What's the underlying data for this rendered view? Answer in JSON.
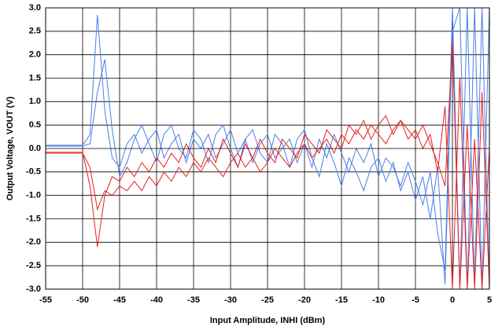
{
  "chart_data": {
    "type": "line",
    "x_label": "Input Amplitude, INHI (dBm)",
    "y_label": "Output Voltage, VOUT (V)",
    "x": [
      -55,
      -54,
      -53,
      -52,
      -51,
      -50,
      -49,
      -48,
      -47,
      -46,
      -45,
      -44,
      -43,
      -42,
      -41,
      -40,
      -39,
      -38,
      -37,
      -36,
      -35,
      -34,
      -33,
      -32,
      -31,
      -30,
      -29,
      -28,
      -27,
      -26,
      -25,
      -24,
      -23,
      -22,
      -21,
      -20,
      -19,
      -18,
      -17,
      -16,
      -15,
      -14,
      -13,
      -12,
      -11,
      -10,
      -9,
      -8,
      -7,
      -6,
      -5,
      -4,
      -3,
      -2,
      -1,
      0,
      1,
      2,
      3,
      4,
      5
    ],
    "series": [
      {
        "color": "#4a7fe8",
        "values": [
          0.07,
          0.07,
          0.07,
          0.07,
          0.07,
          0.07,
          0.3,
          2.85,
          0.8,
          -0.2,
          -0.4,
          0.1,
          0.3,
          -0.1,
          0.2,
          0.4,
          -0.2,
          0.1,
          0.3,
          -0.3,
          0.2,
          0.0,
          0.3,
          -0.2,
          0.1,
          0.4,
          -0.1,
          0.2,
          -0.3,
          0.1,
          0.3,
          -0.2,
          0.0,
          0.2,
          -0.3,
          0.1,
          -0.4,
          0.2,
          -0.2,
          0.3,
          -0.1,
          -0.5,
          0.0,
          -0.3,
          0.1,
          -0.6,
          -0.2,
          -0.4,
          -0.8,
          -0.3,
          -0.7,
          -1.2,
          -0.5,
          -1.8,
          -2.6,
          3.0,
          -3.0,
          3.0,
          -2.9,
          3.0,
          -3.0
        ]
      },
      {
        "color": "#4a7fe8",
        "values": [
          0.05,
          0.05,
          0.05,
          0.05,
          0.05,
          0.05,
          0.1,
          1.2,
          1.9,
          0.4,
          -0.6,
          -0.3,
          0.2,
          0.5,
          0.1,
          -0.3,
          0.3,
          0.5,
          0.0,
          -0.2,
          0.4,
          0.2,
          -0.3,
          0.3,
          0.5,
          0.0,
          -0.4,
          0.2,
          0.4,
          -0.1,
          -0.3,
          0.3,
          0.1,
          -0.4,
          0.2,
          0.4,
          -0.2,
          -0.6,
          0.1,
          -0.3,
          -0.8,
          -0.2,
          -0.5,
          -0.9,
          -0.4,
          -0.2,
          -0.7,
          -0.3,
          -0.9,
          -0.5,
          -1.1,
          -0.6,
          -1.5,
          -0.4,
          -2.9,
          2.5,
          3.0,
          -3.0,
          3.0,
          -3.0,
          3.0
        ]
      },
      {
        "color": "#e82020",
        "values": [
          -0.08,
          -0.08,
          -0.08,
          -0.08,
          -0.08,
          -0.08,
          -0.8,
          -2.1,
          -1.0,
          -0.6,
          -0.7,
          -0.4,
          -0.6,
          -0.3,
          -0.5,
          -0.2,
          -0.4,
          -0.1,
          -0.3,
          0.1,
          -0.2,
          -0.4,
          0.0,
          -0.3,
          0.2,
          -0.1,
          -0.4,
          0.1,
          -0.2,
          0.2,
          -0.1,
          -0.3,
          0.2,
          0.0,
          -0.2,
          0.3,
          0.1,
          -0.1,
          0.4,
          0.2,
          0.0,
          0.5,
          0.3,
          0.6,
          0.2,
          0.5,
          0.7,
          0.3,
          0.6,
          0.4,
          0.2,
          0.5,
          0.1,
          -0.3,
          -0.8,
          2.3,
          -3.0,
          0.5,
          -3.0,
          1.2,
          -3.0
        ]
      },
      {
        "color": "#e82020",
        "values": [
          -0.1,
          -0.1,
          -0.1,
          -0.1,
          -0.1,
          -0.1,
          -0.4,
          -1.3,
          -0.9,
          -1.0,
          -0.8,
          -0.9,
          -0.7,
          -0.9,
          -0.6,
          -0.8,
          -0.5,
          -0.7,
          -0.4,
          -0.6,
          -0.3,
          -0.5,
          -0.2,
          -0.4,
          -0.6,
          -0.3,
          -0.1,
          -0.4,
          -0.2,
          -0.5,
          -0.3,
          0.0,
          -0.2,
          -0.4,
          -0.1,
          0.1,
          -0.2,
          0.0,
          0.2,
          -0.1,
          0.3,
          0.1,
          0.4,
          0.2,
          0.5,
          0.3,
          0.1,
          0.4,
          0.6,
          0.2,
          0.4,
          0.0,
          0.3,
          -0.5,
          0.9,
          -3.0,
          1.5,
          -3.0,
          0.2,
          -3.0,
          0.0
        ]
      }
    ],
    "xlim": [
      -55,
      5
    ],
    "xticks": [
      -55,
      -50,
      -45,
      -40,
      -35,
      -30,
      -25,
      -20,
      -15,
      -10,
      -5,
      0,
      5
    ],
    "ylim": [
      -3,
      3
    ],
    "yticks": [
      {
        "value": 3,
        "label": "3.0"
      },
      2.5,
      {
        "value": 2,
        "label": "2.0"
      },
      1.5,
      {
        "value": 1,
        "label": "1.0"
      },
      0.5,
      {
        "value": 0,
        "label": "0.0"
      },
      -0.5,
      {
        "value": -1,
        "label": "-1.0"
      },
      -1.5,
      {
        "value": -2,
        "label": "-2.0"
      },
      -2.5,
      {
        "value": -3,
        "label": "-3.0"
      }
    ],
    "grid": true
  }
}
